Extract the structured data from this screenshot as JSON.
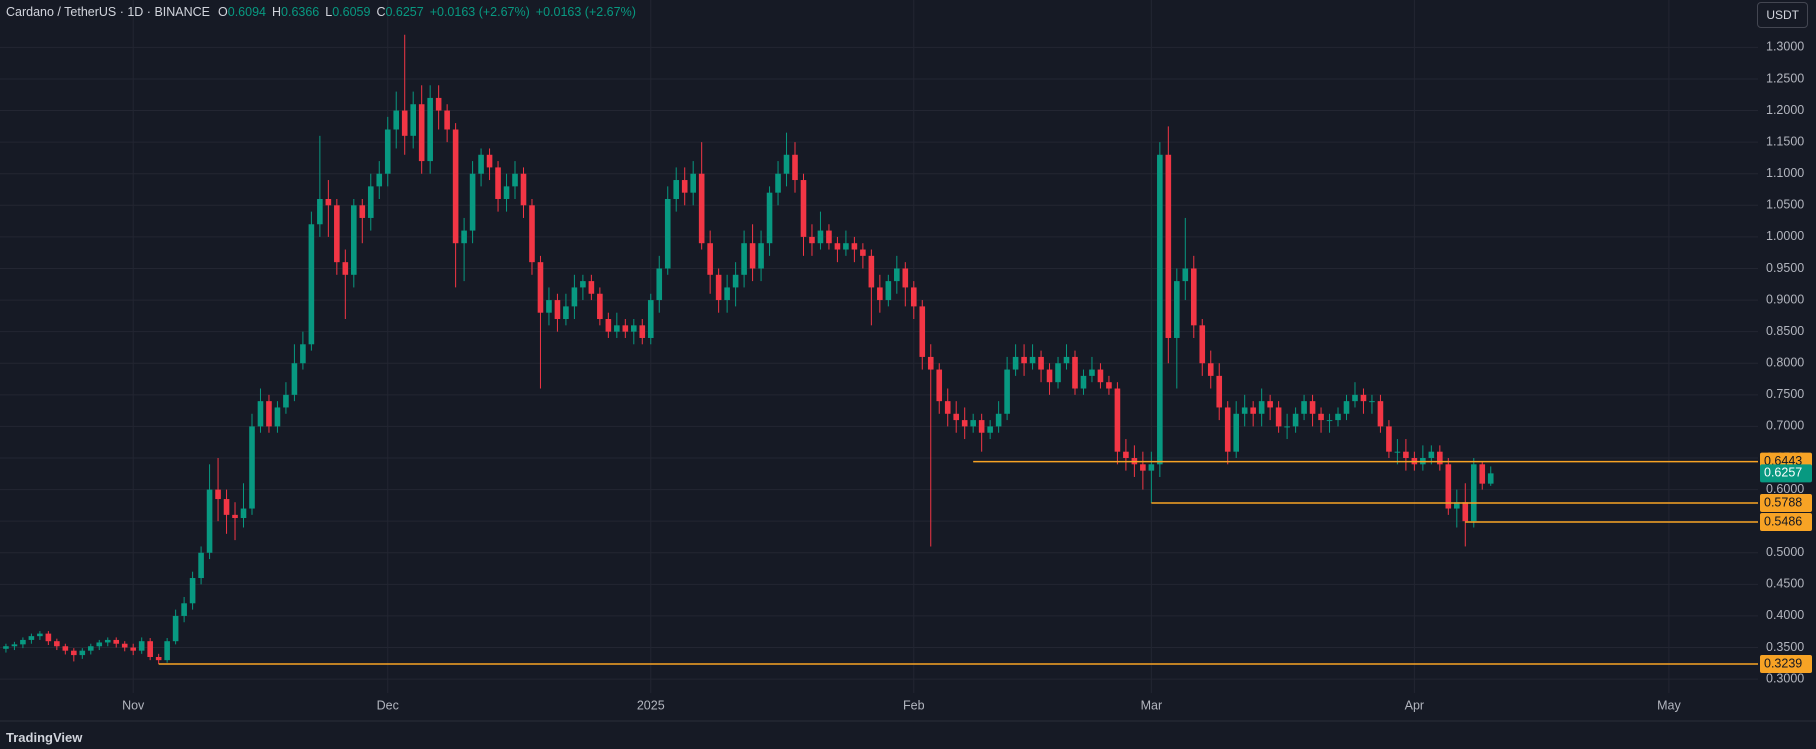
{
  "chart_data": {
    "type": "candlestick",
    "title": "Cardano / TetherUS · 1D · BINANCE",
    "ohlc_labels": [
      "O",
      "H",
      "L",
      "C"
    ],
    "change": "+0.0163 (+2.67%)",
    "currency": "USDT",
    "brand": "TradingView",
    "open": [
      0.348,
      0.352,
      0.355,
      0.362,
      0.368,
      0.372,
      0.36,
      0.352,
      0.345,
      0.338,
      0.345,
      0.352,
      0.358,
      0.362,
      0.356,
      0.35,
      0.345,
      0.36,
      0.335,
      0.33,
      0.36,
      0.4,
      0.42,
      0.46,
      0.5,
      0.6,
      0.585,
      0.56,
      0.555,
      0.57,
      0.7,
      0.74,
      0.7,
      0.73,
      0.75,
      0.8,
      0.83,
      1.02,
      1.06,
      1.05,
      0.96,
      0.94,
      1.05,
      1.03,
      1.08,
      1.1,
      1.17,
      1.2,
      1.16,
      1.21,
      1.12,
      1.22,
      1.2,
      1.17,
      0.99,
      1.01,
      1.1,
      1.13,
      1.11,
      1.06,
      1.08,
      1.1,
      1.05,
      0.96,
      0.88,
      0.9,
      0.87,
      0.89,
      0.92,
      0.93,
      0.91,
      0.87,
      0.85,
      0.86,
      0.85,
      0.86,
      0.84,
      0.9,
      0.95,
      1.06,
      1.09,
      1.07,
      1.1,
      0.99,
      0.94,
      0.9,
      0.92,
      0.94,
      0.99,
      0.95,
      0.99,
      1.07,
      1.1,
      1.13,
      1.09,
      1.0,
      0.99,
      1.01,
      0.99,
      0.98,
      0.99,
      0.98,
      0.97,
      0.92,
      0.9,
      0.93,
      0.95,
      0.92,
      0.89,
      0.81,
      0.79,
      0.74,
      0.72,
      0.71,
      0.7,
      0.71,
      0.69,
      0.7,
      0.72,
      0.79,
      0.81,
      0.8,
      0.81,
      0.79,
      0.77,
      0.8,
      0.81,
      0.76,
      0.78,
      0.79,
      0.77,
      0.76,
      0.66,
      0.65,
      0.64,
      0.63,
      0.64,
      1.13,
      0.84,
      0.93,
      0.95,
      0.86,
      0.8,
      0.78,
      0.73,
      0.66,
      0.72,
      0.73,
      0.72,
      0.74,
      0.73,
      0.7,
      0.7,
      0.72,
      0.74,
      0.72,
      0.71,
      0.71,
      0.72,
      0.74,
      0.75,
      0.74,
      0.74,
      0.7,
      0.66,
      0.66,
      0.65,
      0.64,
      0.65,
      0.66,
      0.64,
      0.57,
      0.58,
      0.55,
      0.64,
      0.6094
    ],
    "high": [
      0.356,
      0.359,
      0.366,
      0.372,
      0.376,
      0.376,
      0.364,
      0.356,
      0.349,
      0.349,
      0.356,
      0.362,
      0.366,
      0.366,
      0.36,
      0.356,
      0.366,
      0.365,
      0.34,
      0.365,
      0.41,
      0.43,
      0.47,
      0.51,
      0.64,
      0.65,
      0.6,
      0.58,
      0.61,
      0.72,
      0.76,
      0.75,
      0.74,
      0.77,
      0.83,
      0.85,
      1.04,
      1.16,
      1.09,
      1.06,
      0.98,
      1.06,
      1.06,
      1.1,
      1.12,
      1.19,
      1.23,
      1.32,
      1.23,
      1.24,
      1.24,
      1.24,
      1.21,
      1.18,
      1.03,
      1.12,
      1.14,
      1.14,
      1.12,
      1.1,
      1.12,
      1.11,
      1.06,
      0.97,
      0.92,
      0.91,
      0.91,
      0.94,
      0.94,
      0.94,
      0.92,
      0.88,
      0.88,
      0.87,
      0.87,
      0.87,
      0.91,
      0.97,
      1.08,
      1.11,
      1.11,
      1.12,
      1.15,
      1.01,
      0.95,
      0.94,
      0.96,
      1.01,
      1.02,
      1.01,
      1.08,
      1.12,
      1.165,
      1.15,
      1.1,
      1.02,
      1.04,
      1.02,
      1.0,
      1.01,
      1.0,
      0.99,
      0.98,
      0.94,
      0.94,
      0.97,
      0.96,
      0.93,
      0.9,
      0.83,
      0.8,
      0.76,
      0.74,
      0.73,
      0.72,
      0.72,
      0.71,
      0.74,
      0.81,
      0.83,
      0.83,
      0.83,
      0.82,
      0.8,
      0.81,
      0.83,
      0.82,
      0.79,
      0.81,
      0.8,
      0.78,
      0.77,
      0.68,
      0.67,
      0.66,
      0.66,
      1.15,
      1.175,
      0.95,
      1.03,
      0.97,
      0.87,
      0.82,
      0.8,
      0.74,
      0.74,
      0.75,
      0.74,
      0.76,
      0.75,
      0.74,
      0.72,
      0.73,
      0.75,
      0.75,
      0.73,
      0.72,
      0.73,
      0.75,
      0.77,
      0.76,
      0.75,
      0.75,
      0.71,
      0.68,
      0.68,
      0.66,
      0.67,
      0.67,
      0.67,
      0.65,
      0.6,
      0.61,
      0.65,
      0.645,
      0.6366
    ],
    "low": [
      0.342,
      0.346,
      0.349,
      0.356,
      0.362,
      0.354,
      0.346,
      0.339,
      0.328,
      0.332,
      0.339,
      0.346,
      0.352,
      0.35,
      0.344,
      0.338,
      0.34,
      0.33,
      0.3239,
      0.326,
      0.355,
      0.39,
      0.41,
      0.45,
      0.49,
      0.55,
      0.53,
      0.52,
      0.54,
      0.56,
      0.69,
      0.69,
      0.69,
      0.72,
      0.74,
      0.79,
      0.82,
      1.0,
      1.0,
      0.94,
      0.87,
      0.92,
      0.99,
      1.01,
      1.06,
      1.08,
      1.14,
      1.13,
      1.14,
      1.1,
      1.1,
      1.17,
      1.15,
      0.92,
      0.93,
      0.99,
      1.08,
      1.09,
      1.04,
      1.04,
      1.06,
      1.03,
      0.94,
      0.76,
      0.86,
      0.85,
      0.86,
      0.87,
      0.9,
      0.9,
      0.86,
      0.84,
      0.84,
      0.84,
      0.83,
      0.83,
      0.83,
      0.88,
      0.94,
      1.04,
      1.05,
      1.05,
      0.98,
      0.91,
      0.88,
      0.88,
      0.89,
      0.92,
      0.93,
      0.93,
      0.97,
      1.05,
      1.08,
      1.07,
      0.97,
      0.97,
      0.98,
      0.98,
      0.96,
      0.97,
      0.96,
      0.95,
      0.86,
      0.88,
      0.89,
      0.91,
      0.89,
      0.87,
      0.79,
      0.51,
      0.72,
      0.7,
      0.69,
      0.68,
      0.69,
      0.66,
      0.68,
      0.69,
      0.71,
      0.78,
      0.78,
      0.79,
      0.77,
      0.75,
      0.76,
      0.79,
      0.75,
      0.75,
      0.77,
      0.76,
      0.75,
      0.64,
      0.63,
      0.62,
      0.6,
      0.5788,
      0.62,
      0.8,
      0.76,
      0.9,
      0.84,
      0.78,
      0.76,
      0.71,
      0.64,
      0.65,
      0.7,
      0.7,
      0.7,
      0.71,
      0.69,
      0.68,
      0.69,
      0.71,
      0.7,
      0.69,
      0.69,
      0.7,
      0.71,
      0.73,
      0.72,
      0.72,
      0.69,
      0.65,
      0.64,
      0.63,
      0.63,
      0.63,
      0.64,
      0.63,
      0.56,
      0.54,
      0.51,
      0.54,
      0.6,
      0.6059
    ],
    "close": [
      0.352,
      0.355,
      0.362,
      0.368,
      0.372,
      0.36,
      0.352,
      0.345,
      0.338,
      0.345,
      0.352,
      0.358,
      0.362,
      0.356,
      0.35,
      0.345,
      0.36,
      0.335,
      0.33,
      0.36,
      0.4,
      0.42,
      0.46,
      0.5,
      0.6,
      0.585,
      0.56,
      0.555,
      0.57,
      0.7,
      0.74,
      0.7,
      0.73,
      0.75,
      0.8,
      0.83,
      1.02,
      1.06,
      1.05,
      0.96,
      0.94,
      1.05,
      1.03,
      1.08,
      1.1,
      1.17,
      1.2,
      1.16,
      1.21,
      1.12,
      1.22,
      1.2,
      1.17,
      0.99,
      1.01,
      1.1,
      1.13,
      1.11,
      1.06,
      1.08,
      1.1,
      1.05,
      0.96,
      0.88,
      0.9,
      0.87,
      0.89,
      0.92,
      0.93,
      0.91,
      0.87,
      0.85,
      0.86,
      0.85,
      0.86,
      0.84,
      0.9,
      0.95,
      1.06,
      1.09,
      1.07,
      1.1,
      0.99,
      0.94,
      0.9,
      0.92,
      0.94,
      0.99,
      0.95,
      0.99,
      1.07,
      1.1,
      1.13,
      1.09,
      1.0,
      0.99,
      1.01,
      0.99,
      0.98,
      0.99,
      0.98,
      0.97,
      0.92,
      0.9,
      0.93,
      0.95,
      0.92,
      0.89,
      0.81,
      0.79,
      0.74,
      0.72,
      0.71,
      0.7,
      0.71,
      0.69,
      0.7,
      0.72,
      0.79,
      0.81,
      0.8,
      0.81,
      0.79,
      0.77,
      0.8,
      0.81,
      0.76,
      0.78,
      0.79,
      0.77,
      0.76,
      0.66,
      0.65,
      0.64,
      0.63,
      0.64,
      1.13,
      0.84,
      0.93,
      0.95,
      0.86,
      0.8,
      0.78,
      0.73,
      0.66,
      0.72,
      0.73,
      0.72,
      0.74,
      0.73,
      0.7,
      0.7,
      0.72,
      0.74,
      0.72,
      0.71,
      0.71,
      0.72,
      0.74,
      0.75,
      0.74,
      0.74,
      0.7,
      0.66,
      0.66,
      0.65,
      0.64,
      0.65,
      0.66,
      0.64,
      0.57,
      0.58,
      0.55,
      0.64,
      0.6094,
      0.6257
    ],
    "up_color": "#089981",
    "down_color": "#f23645",
    "line_color": "#f7a325",
    "xlim": [
      -0.7,
      206.5
    ],
    "xticks": [
      {
        "value": 15,
        "label": "Nov"
      },
      {
        "value": 45,
        "label": "Dec"
      },
      {
        "value": 76,
        "label": "2025"
      },
      {
        "value": 107,
        "label": "Feb"
      },
      {
        "value": 135,
        "label": "Mar"
      },
      {
        "value": 166,
        "label": "Apr"
      },
      {
        "value": 196,
        "label": "May"
      }
    ],
    "ylim": [
      0.278,
      1.375
    ],
    "yticks": [
      {
        "value": 0.3,
        "label": "0.3000"
      },
      {
        "value": 0.35,
        "label": "0.3500"
      },
      {
        "value": 0.4,
        "label": "0.4000"
      },
      {
        "value": 0.45,
        "label": "0.4500"
      },
      {
        "value": 0.5,
        "label": "0.5000"
      },
      {
        "value": 0.55,
        "label": "0.5500"
      },
      {
        "value": 0.6,
        "label": "0.6000"
      },
      {
        "value": 0.65,
        "label": "0.6500"
      },
      {
        "value": 0.7,
        "label": "0.7000"
      },
      {
        "value": 0.75,
        "label": "0.7500"
      },
      {
        "value": 0.8,
        "label": "0.8000"
      },
      {
        "value": 0.85,
        "label": "0.8500"
      },
      {
        "value": 0.9,
        "label": "0.9000"
      },
      {
        "value": 0.95,
        "label": "0.9500"
      },
      {
        "value": 1.0,
        "label": "1.0000"
      },
      {
        "value": 1.05,
        "label": "1.0500"
      },
      {
        "value": 1.1,
        "label": "1.1000"
      },
      {
        "value": 1.15,
        "label": "1.1500"
      },
      {
        "value": 1.2,
        "label": "1.2000"
      },
      {
        "value": 1.25,
        "label": "1.2500"
      },
      {
        "value": 1.3,
        "label": "1.3000"
      }
    ],
    "grid": true,
    "horizontal_lines": [
      {
        "value": 0.6443,
        "start": 114
      },
      {
        "value": 0.5788,
        "start": 135
      },
      {
        "value": 0.5486,
        "start": 172
      },
      {
        "value": 0.3239,
        "start": 18
      }
    ]
  }
}
